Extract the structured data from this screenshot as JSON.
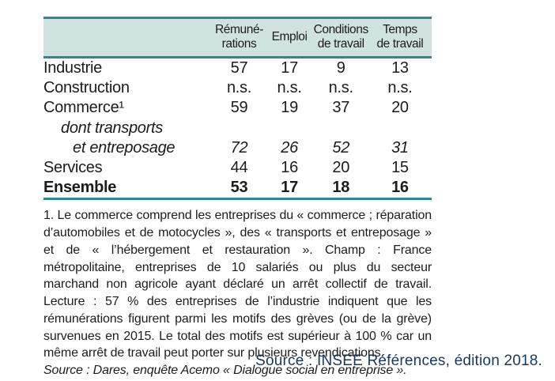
{
  "colors": {
    "teal_rule": "#2d8794",
    "header_band": "#d1e3e1",
    "body_text": "#1c1c1c",
    "page_source_blue": "#17375d"
  },
  "table": {
    "columns": [
      "Rémuné-\nrations",
      "Emploi",
      "Conditions\nde travail",
      "Temps\nde travail"
    ],
    "rows": [
      {
        "label": "Industrie",
        "values": [
          "57",
          "17",
          "9",
          "13"
        ],
        "variant": "normal",
        "indent": 0
      },
      {
        "label": "Construction",
        "values": [
          "n.s.",
          "n.s.",
          "n.s.",
          "n.s."
        ],
        "variant": "normal",
        "indent": 0
      },
      {
        "label": "Commerce¹",
        "values": [
          "59",
          "19",
          "37",
          "20"
        ],
        "variant": "normal",
        "indent": 0
      },
      {
        "label": "dont transports",
        "values": [
          "",
          "",
          "",
          ""
        ],
        "variant": "italic",
        "indent": 1
      },
      {
        "label": "et entreposage",
        "values": [
          "72",
          "26",
          "52",
          "31"
        ],
        "variant": "italic",
        "indent": 2
      },
      {
        "label": "Services",
        "values": [
          "44",
          "16",
          "20",
          "15"
        ],
        "variant": "normal",
        "indent": 0
      },
      {
        "label": "Ensemble",
        "values": [
          "53",
          "17",
          "18",
          "16"
        ],
        "variant": "bold",
        "indent": 0
      }
    ]
  },
  "notes": {
    "footnote": "1. Le commerce comprend les entreprises du « commerce ; réparation d’automobiles et de motocycles », des « transports et entreposage » et de « l’hébergement et restauration ». Champ : France métropolitaine, entreprises de 10 salariés ou plus du secteur marchand non agricole ayant déclaré un arrêt collectif de travail. Lecture : 57 % des entreprises de l’industrie indiquent que les rémunérations figurent parmi les motifs des grèves (ou de la grève) survenues en 2015. Le total des motifs est supérieur à 100 % car un même arrêt de travail peut porter sur plusieurs revendications.",
    "table_source": "Source : Dares, enquête Acemo « Dialogue social en entreprise ».",
    "page_source": "Source : INSEE Références, édition 2018."
  }
}
